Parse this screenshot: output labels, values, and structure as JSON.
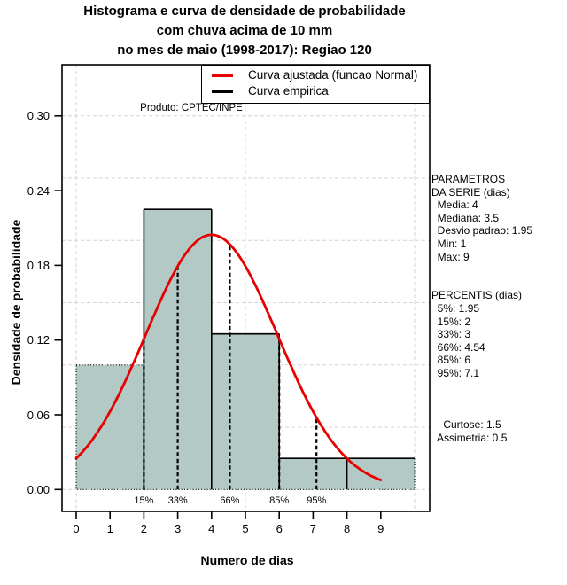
{
  "title": {
    "line1": "Histograma e curva de densidade de probabilidade",
    "line2": "com chuva acima de 10 mm",
    "line3": "no mes de maio (1998-2017): Regiao 120"
  },
  "legend": [
    {
      "label": "Curva ajustada (funcao Normal)",
      "color": "#E80000"
    },
    {
      "label": "Curva empirica",
      "color": "#000000"
    }
  ],
  "produto_note": "Produto: CPTEC/INPE",
  "axes": {
    "y_label": "Densidade de probabilidade",
    "x_label": "Numero de dias"
  },
  "stats_panel": {
    "lines": [
      "PARAMETROS",
      "DA SERIE (dias)",
      "  Media: 4",
      "  Mediana: 3.5",
      "  Desvio padrao: 1.95",
      "  Min: 1",
      "  Max: 9",
      "",
      "",
      "PERCENTIS (dias)",
      "  5%: 1.95",
      "  15%: 2",
      "  33%: 3",
      "  66%: 4.54",
      "  85%: 6",
      "  95%: 7.1",
      "",
      "",
      "",
      "    Curtose: 1.5",
      "  Assimetria: 0.5"
    ]
  },
  "chart_data": {
    "type": "histogram+density-line",
    "title": "Histograma e curva de densidade de probabilidade com chuva acima de 10 mm no mes de maio (1998-2017): Regiao 120",
    "xlabel": "Numero de dias",
    "ylabel": "Densidade de probabilidade",
    "xlim": [
      -0.45,
      10.45
    ],
    "ylim": [
      -0.017,
      0.342
    ],
    "bins": [
      {
        "from": 0,
        "to": 2,
        "density": 0.1
      },
      {
        "from": 2,
        "to": 4,
        "density": 0.225
      },
      {
        "from": 4,
        "to": 6,
        "density": 0.125
      },
      {
        "from": 6,
        "to": 8,
        "density": 0.025
      },
      {
        "from": 8,
        "to": 10,
        "density": 0.025
      }
    ],
    "fitted_normal": {
      "mean": 4,
      "sd": 1.95,
      "x_range": [
        0,
        9
      ],
      "peak_density": 0.205
    },
    "percentile_lines": [
      {
        "label": "15%",
        "x": 2
      },
      {
        "label": "33%",
        "x": 3
      },
      {
        "label": "66%",
        "x": 4.54
      },
      {
        "label": "85%",
        "x": 6
      },
      {
        "label": "95%",
        "x": 7.1
      }
    ],
    "y_ticks": [
      {
        "v": 0.0,
        "label": "0.00"
      },
      {
        "v": 0.06,
        "label": "0.06"
      },
      {
        "v": 0.12,
        "label": "0.12"
      },
      {
        "v": 0.18,
        "label": "0.18"
      },
      {
        "v": 0.24,
        "label": "0.24"
      },
      {
        "v": 0.3,
        "label": "0.30"
      }
    ],
    "x_ticks": [
      {
        "v": 0,
        "label": "0"
      },
      {
        "v": 1,
        "label": "1"
      },
      {
        "v": 2,
        "label": "2"
      },
      {
        "v": 3,
        "label": "3"
      },
      {
        "v": 4,
        "label": "4"
      },
      {
        "v": 5,
        "label": "5"
      },
      {
        "v": 6,
        "label": "6"
      },
      {
        "v": 7,
        "label": "7"
      },
      {
        "v": 8,
        "label": "8"
      },
      {
        "v": 9,
        "label": "9"
      }
    ],
    "grid": {
      "y_values": [
        0,
        0.05,
        0.1,
        0.15,
        0.2,
        0.25,
        0.3
      ],
      "x_values": [
        0,
        5,
        10
      ]
    },
    "colors": {
      "bar_fill": "#B2C9C5",
      "curve": "#E80000",
      "grid": "#D4D4D4",
      "ink": "#000000"
    }
  }
}
